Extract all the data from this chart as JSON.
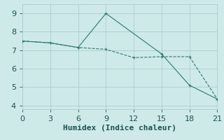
{
  "line1_x": [
    0,
    3,
    6,
    9,
    12,
    15,
    18,
    21
  ],
  "line1_y": [
    7.5,
    7.4,
    7.15,
    7.05,
    6.6,
    6.65,
    6.65,
    4.35
  ],
  "line2_x": [
    0,
    3,
    6,
    9,
    15,
    18,
    21
  ],
  "line2_y": [
    7.5,
    7.4,
    7.15,
    9.0,
    6.8,
    5.1,
    4.35
  ],
  "line_color": "#2a7a6e",
  "bg_color": "#ceeae8",
  "grid_color": "#a8cece",
  "xlabel": "Humidex (Indice chaleur)",
  "xticks": [
    0,
    3,
    6,
    9,
    12,
    15,
    18,
    21
  ],
  "yticks": [
    4,
    5,
    6,
    7,
    8,
    9
  ],
  "xlim": [
    0,
    21
  ],
  "ylim": [
    3.8,
    9.5
  ],
  "font_color": "#1a5050",
  "tick_fontsize": 8,
  "xlabel_fontsize": 8
}
